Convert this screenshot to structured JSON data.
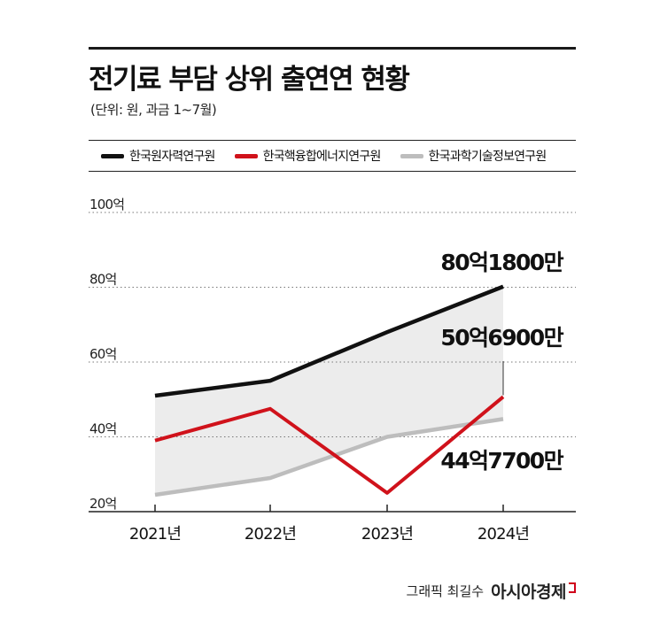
{
  "title": "전기료 부담 상위 출연연 현황",
  "subtitle": "(단위: 원, 과금 1~7월)",
  "credit": {
    "label": "그래픽 최길수",
    "brand": "아시아경제"
  },
  "colors": {
    "black_series": "#111111",
    "red_series": "#d0121b",
    "gray_series": "#bdbdbd",
    "area_fill": "#ececec"
  },
  "chart_data": {
    "type": "line",
    "categories": [
      "2021년",
      "2022년",
      "2023년",
      "2024년"
    ],
    "y_ticks": [
      "20억",
      "40억",
      "60억",
      "80억",
      "100억"
    ],
    "ylim": [
      20,
      100
    ],
    "grid": true,
    "legend_position": "top",
    "series": [
      {
        "name": "한국원자력연구원",
        "values": [
          51,
          55,
          68,
          80.18
        ]
      },
      {
        "name": "한국핵융합에너지연구원",
        "values": [
          39,
          47.5,
          25,
          50.69
        ]
      },
      {
        "name": "한국과학기술정보연구원",
        "values": [
          24.5,
          29,
          40,
          44.77
        ]
      }
    ],
    "annotations": [
      "80억1800만",
      "50억6900만",
      "44억7700만"
    ]
  }
}
